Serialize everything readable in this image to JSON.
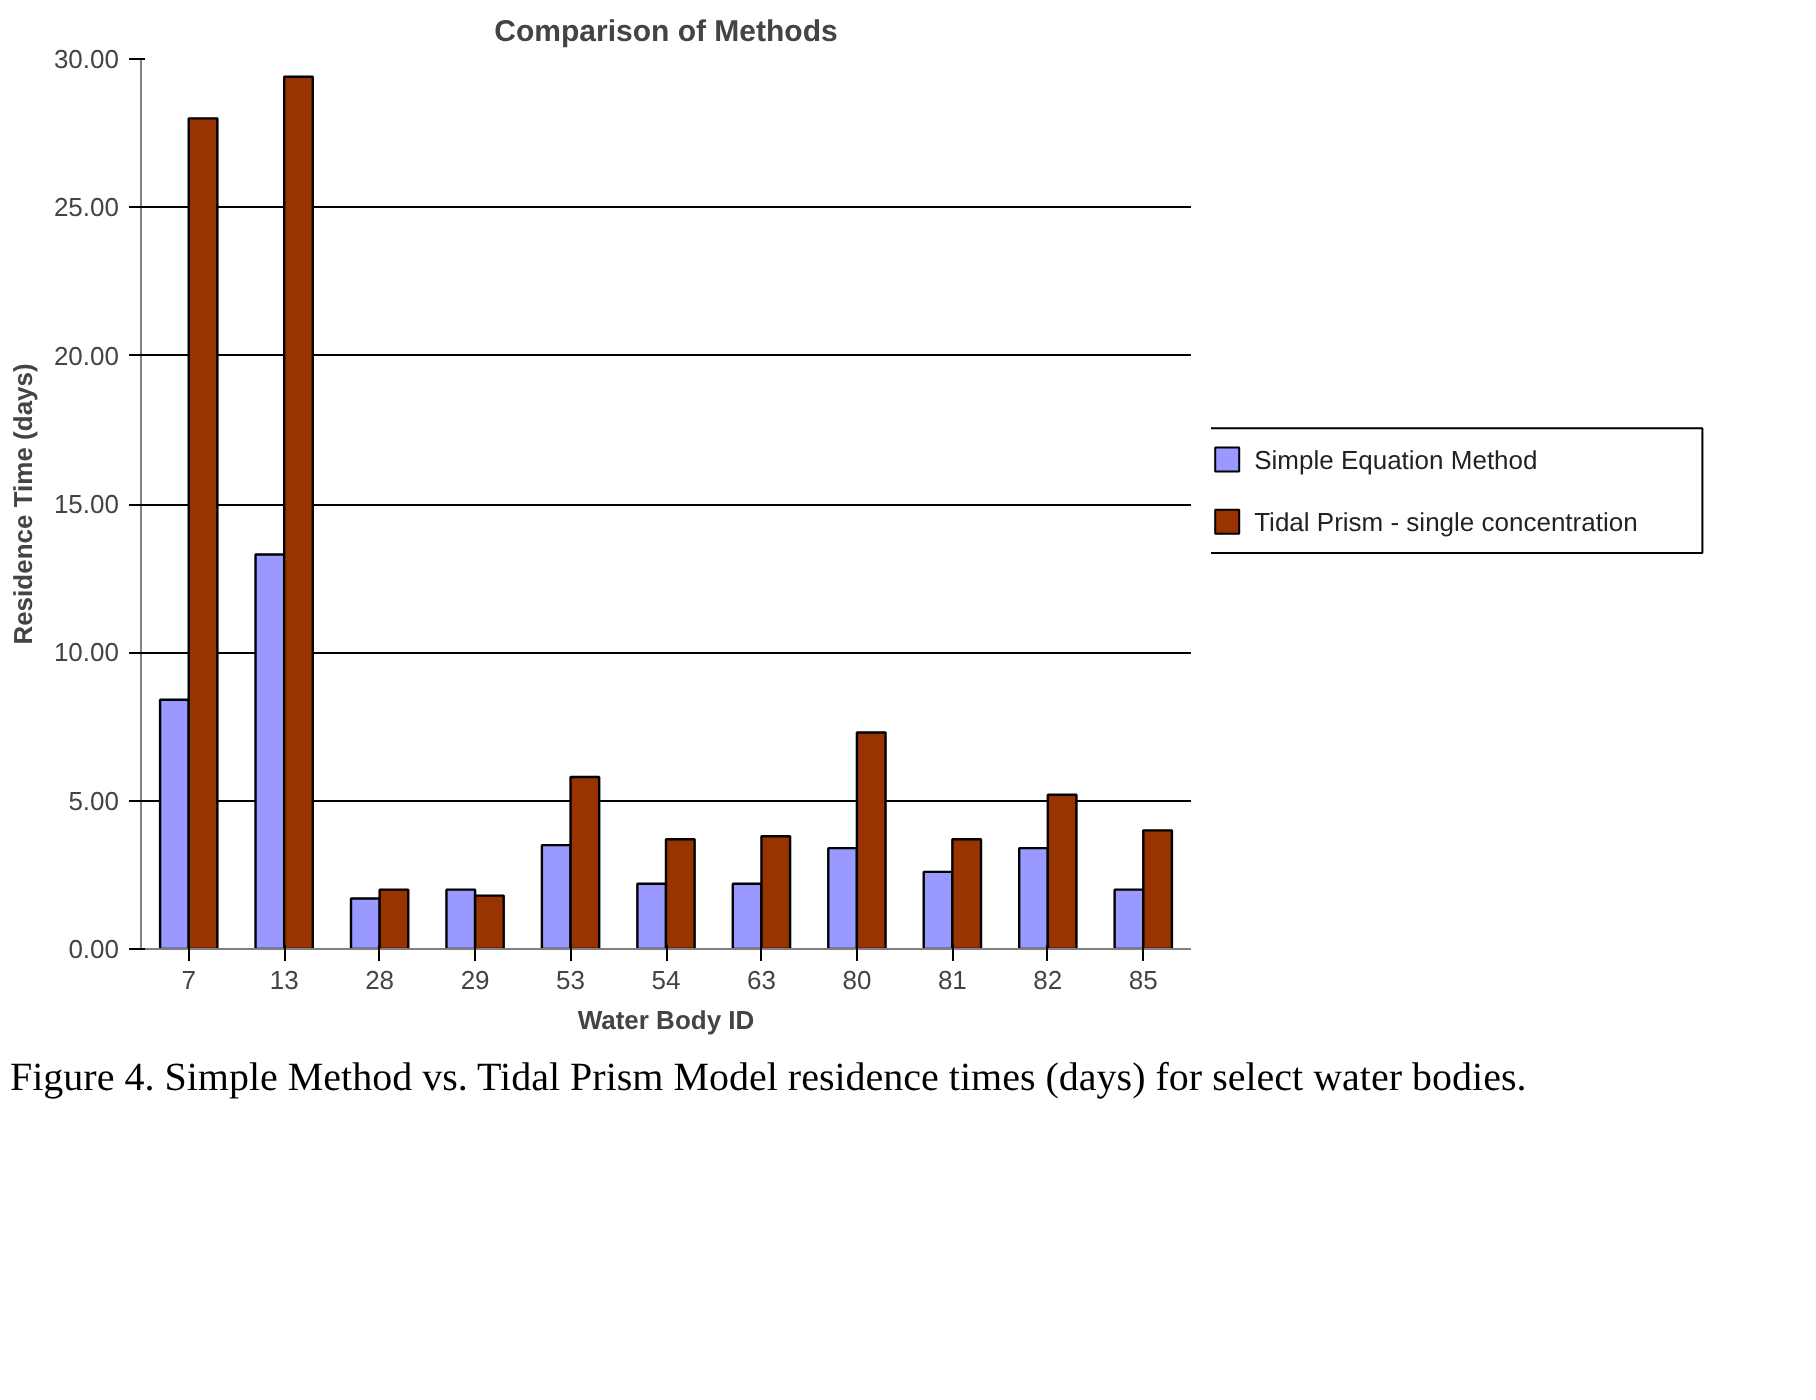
{
  "chart_data": {
    "type": "bar",
    "title": "Comparison of Methods",
    "xlabel": "Water Body ID",
    "ylabel": "Residence Time (days)",
    "categories": [
      "7",
      "13",
      "28",
      "29",
      "53",
      "54",
      "63",
      "80",
      "81",
      "82",
      "85"
    ],
    "series": [
      {
        "name": "Simple Equation Method",
        "color": "#9999ff",
        "values": [
          8.4,
          13.3,
          1.7,
          2.0,
          3.5,
          2.2,
          2.2,
          3.4,
          2.6,
          3.4,
          2.0
        ]
      },
      {
        "name": "Tidal Prism - single concentration",
        "color": "#993300",
        "values": [
          28.0,
          29.4,
          2.0,
          1.8,
          5.8,
          3.7,
          3.8,
          7.3,
          3.7,
          5.2,
          4.0
        ]
      }
    ],
    "ylim": [
      0,
      30
    ],
    "yticks": [
      {
        "value": 0,
        "label": "0.00"
      },
      {
        "value": 5,
        "label": "5.00"
      },
      {
        "value": 10,
        "label": "10.00"
      },
      {
        "value": 15,
        "label": "15.00"
      },
      {
        "value": 20,
        "label": "20.00"
      },
      {
        "value": 25,
        "label": "25.00"
      },
      {
        "value": 30,
        "label": "30.00"
      }
    ],
    "grid": "y",
    "legend": "right",
    "annotations": [
      "Figure 4. Simple Method vs. Tidal Prism Model residence times (days) for select water bodies."
    ]
  }
}
